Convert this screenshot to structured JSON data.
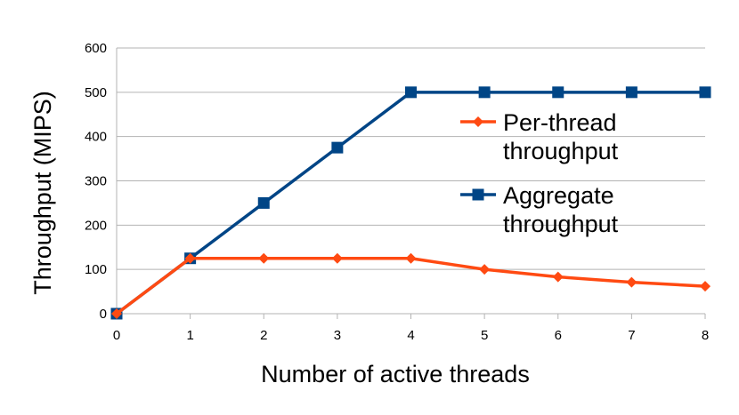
{
  "chart_data": {
    "type": "line",
    "title": "",
    "xlabel": "Number of active threads",
    "ylabel": "Throughput (MIPS)",
    "x": [
      0,
      1,
      2,
      3,
      4,
      5,
      6,
      7,
      8
    ],
    "x_tick_labels": [
      "0",
      "1",
      "2",
      "3",
      "4",
      "5",
      "6",
      "7",
      "8"
    ],
    "y_tick_labels": [
      "0",
      "100",
      "200",
      "300",
      "400",
      "500",
      "600"
    ],
    "xlim": [
      0,
      8
    ],
    "ylim": [
      0,
      600
    ],
    "y_ticks": [
      0,
      100,
      200,
      300,
      400,
      500,
      600
    ],
    "grid": "horizontal",
    "legend_position": "right",
    "series": [
      {
        "name": "Per-thread throughput",
        "legend_lines": [
          "Per-thread",
          "throughput"
        ],
        "color": "#FF4A12",
        "marker": "diamond",
        "values": [
          0,
          125,
          125,
          125,
          125,
          100,
          83,
          71,
          62
        ]
      },
      {
        "name": "Aggregate throughput",
        "legend_lines": [
          "Aggregate",
          "throughput"
        ],
        "color": "#004586",
        "marker": "square",
        "values": [
          0,
          125,
          250,
          375,
          500,
          500,
          500,
          500,
          500
        ]
      }
    ]
  }
}
